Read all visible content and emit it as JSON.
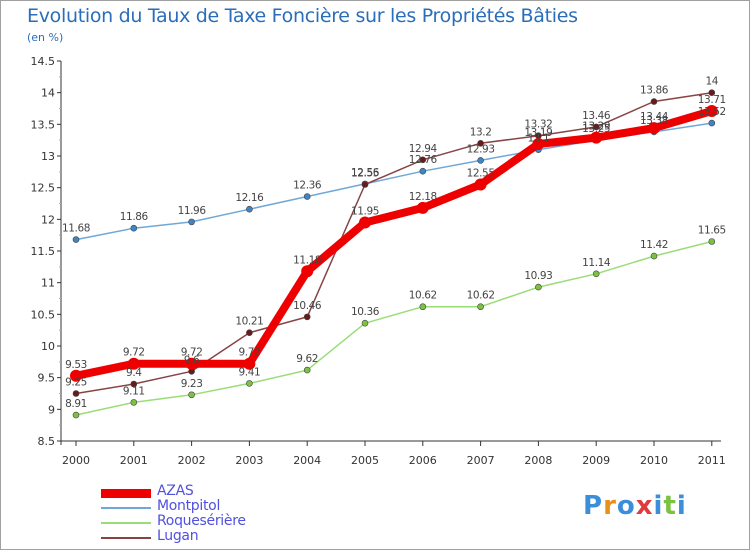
{
  "header": {
    "title": "Evolution du Taux de Taxe Foncière sur les Propriétés Bâties",
    "subtitle": "(en %)"
  },
  "logo": {
    "text": "Proxiti",
    "letter_colors": [
      "#3a8fd8",
      "#e8901a",
      "#3a8fd8",
      "#e03a3a",
      "#3a8fd8",
      "#7cc242",
      "#3a8fd8"
    ]
  },
  "chart_data": {
    "type": "line",
    "x": [
      "2000",
      "2001",
      "2002",
      "2003",
      "2004",
      "2005",
      "2006",
      "2007",
      "2008",
      "2009",
      "2010",
      "2011"
    ],
    "ylim": [
      8.5,
      14.5
    ],
    "yticks": [
      "8.5",
      "9",
      "9.5",
      "10",
      "10.5",
      "11",
      "11.5",
      "12",
      "12.5",
      "13",
      "13.5",
      "14",
      "14.5"
    ],
    "grid": false,
    "legend_placement": "bottom-left",
    "series": [
      {
        "name": "AZAS",
        "color": "#ee0000",
        "values": [
          9.53,
          9.72,
          9.72,
          9.72,
          11.18,
          11.95,
          12.18,
          12.55,
          13.19,
          13.29,
          13.44,
          13.71
        ],
        "labels": [
          "9.53",
          "9.72",
          "9.72",
          "9.72",
          "11.18",
          "11.95",
          "12.18",
          "12.55",
          "13.19",
          "13.29",
          "13.44",
          "13.71"
        ]
      },
      {
        "name": "Montpitol",
        "color": "#6fa8d8",
        "values": [
          11.68,
          11.86,
          11.96,
          12.16,
          12.36,
          12.56,
          12.76,
          12.93,
          13.1,
          13.25,
          13.38,
          13.52
        ],
        "labels": [
          "11.68",
          "11.86",
          "11.96",
          "12.16",
          "12.36",
          "12.56",
          "12.76",
          "12.93",
          "13.1",
          "13.25",
          "13.38",
          "13.52"
        ]
      },
      {
        "name": "Roquesérière",
        "color": "#99dd77",
        "values": [
          8.91,
          9.11,
          9.23,
          9.41,
          9.62,
          10.36,
          10.62,
          10.62,
          10.93,
          11.14,
          11.42,
          11.65
        ],
        "labels": [
          "8.91",
          "9.11",
          "9.23",
          "9.41",
          "9.62",
          "10.36",
          "10.62",
          "10.62",
          "10.93",
          "11.14",
          "11.42",
          "11.65"
        ]
      },
      {
        "name": "Lugan",
        "color": "#884444",
        "values": [
          9.25,
          9.4,
          9.6,
          10.21,
          10.46,
          12.55,
          12.94,
          13.2,
          13.32,
          13.46,
          13.86,
          14
        ],
        "labels": [
          "9.25",
          "9.4",
          "9.6",
          "10.21",
          "10.46",
          "12.55",
          "12.94",
          "13.2",
          "13.32",
          "13.46",
          "13.86",
          "14"
        ]
      }
    ]
  }
}
